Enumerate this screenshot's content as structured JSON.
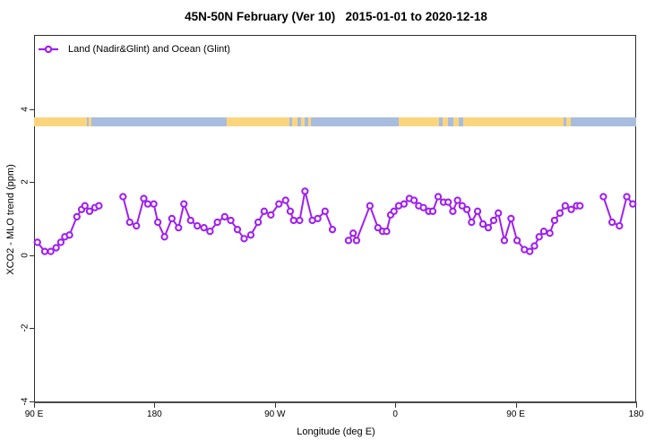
{
  "title": "45N-50N February (Ver 10)   2015-01-01 to 2020-12-18",
  "legend": {
    "label": "Land (Nadir&Glint) and Ocean (Glint)"
  },
  "colors": {
    "series": "#A020F0",
    "land": "#FBD57E",
    "ocean": "#A8BCDE",
    "axis": "#2f2f2f",
    "axis_bottom": "#4a4a4a"
  },
  "axes": {
    "x": {
      "label": "Longitude (deg E)",
      "range": [
        90,
        540
      ],
      "ticks": [
        {
          "pos": 90,
          "label": "90 E"
        },
        {
          "pos": 180,
          "label": "180"
        },
        {
          "pos": 270,
          "label": "90 W"
        },
        {
          "pos": 360,
          "label": "0"
        },
        {
          "pos": 450,
          "label": "90 E"
        },
        {
          "pos": 540,
          "label": "180"
        }
      ]
    },
    "y": {
      "label": "XCO2 - MLO trend (ppm)",
      "ticks": [
        {
          "pos": -4,
          "label": "-4"
        },
        {
          "pos": -2,
          "label": "-2"
        },
        {
          "pos": 0,
          "label": "0"
        },
        {
          "pos": 2,
          "label": "2"
        },
        {
          "pos": 4,
          "label": "4"
        }
      ]
    }
  },
  "surface_band": {
    "y_top_value": 3.77,
    "y_bottom_value": 3.52,
    "segments": [
      {
        "surface": "land",
        "from": 90,
        "to": 129.5
      },
      {
        "surface": "ocean",
        "from": 129.5,
        "to": 131
      },
      {
        "surface": "land",
        "from": 131,
        "to": 133
      },
      {
        "surface": "ocean",
        "from": 133,
        "to": 234
      },
      {
        "surface": "land",
        "from": 234,
        "to": 281
      },
      {
        "surface": "ocean",
        "from": 281,
        "to": 283
      },
      {
        "surface": "land",
        "from": 283,
        "to": 287
      },
      {
        "surface": "ocean",
        "from": 287,
        "to": 289.5
      },
      {
        "surface": "land",
        "from": 289.5,
        "to": 292
      },
      {
        "surface": "ocean",
        "from": 292,
        "to": 295
      },
      {
        "surface": "land",
        "from": 295,
        "to": 297
      },
      {
        "surface": "ocean",
        "from": 297,
        "to": 362.5
      },
      {
        "surface": "land",
        "from": 362.5,
        "to": 392.5
      },
      {
        "surface": "ocean",
        "from": 392.5,
        "to": 395.5
      },
      {
        "surface": "land",
        "from": 395.5,
        "to": 399.5
      },
      {
        "surface": "ocean",
        "from": 399.5,
        "to": 403.5
      },
      {
        "surface": "land",
        "from": 403.5,
        "to": 407.5
      },
      {
        "surface": "ocean",
        "from": 407.5,
        "to": 411
      },
      {
        "surface": "land",
        "from": 411,
        "to": 485.5
      },
      {
        "surface": "ocean",
        "from": 485.5,
        "to": 488
      },
      {
        "surface": "land",
        "from": 488,
        "to": 491
      },
      {
        "surface": "ocean",
        "from": 491,
        "to": 540
      }
    ]
  },
  "chart_data": {
    "type": "line",
    "title": "45N-50N February (Ver 10)   2015-01-01 to 2020-12-18",
    "xlabel": "Longitude (deg E)",
    "ylabel": "XCO2 - MLO trend (ppm)",
    "xlim": [
      90,
      540
    ],
    "ylim": [
      -4,
      6
    ],
    "legend_position": "top-left",
    "grid": false,
    "series": [
      {
        "name": "Land (Nadir&Glint) and Ocean (Glint)",
        "color": "#A020F0",
        "marker": "open-circle",
        "segments": [
          [
            [
              92.5,
              0.35
            ],
            [
              98,
              0.1
            ],
            [
              102.5,
              0.1
            ],
            [
              106.5,
              0.2
            ],
            [
              110,
              0.35
            ],
            [
              113,
              0.5
            ],
            [
              116.5,
              0.55
            ],
            [
              122,
              1.05
            ],
            [
              125.5,
              1.25
            ],
            [
              128,
              1.35
            ],
            [
              131.5,
              1.2
            ],
            [
              135.5,
              1.3
            ],
            [
              138.5,
              1.35
            ]
          ],
          [
            [
              156.5,
              1.6
            ],
            [
              161.5,
              0.9
            ],
            [
              166.5,
              0.8
            ],
            [
              172,
              1.55
            ],
            [
              175,
              1.4
            ],
            [
              179.5,
              1.4
            ],
            [
              182.5,
              0.9
            ],
            [
              187.5,
              0.5
            ],
            [
              193,
              1.0
            ],
            [
              198,
              0.75
            ],
            [
              202,
              1.4
            ],
            [
              207,
              0.95
            ],
            [
              212,
              0.8
            ],
            [
              217,
              0.75
            ],
            [
              221.5,
              0.65
            ],
            [
              227,
              0.9
            ],
            [
              232.5,
              1.05
            ],
            [
              237,
              0.95
            ],
            [
              242,
              0.7
            ],
            [
              247,
              0.45
            ],
            [
              252,
              0.55
            ],
            [
              257.5,
              0.9
            ],
            [
              262,
              1.2
            ],
            [
              267,
              1.1
            ],
            [
              273,
              1.4
            ],
            [
              278,
              1.5
            ],
            [
              281.5,
              1.2
            ],
            [
              284,
              0.95
            ],
            [
              288.5,
              0.95
            ],
            [
              292.5,
              1.75
            ],
            [
              298,
              0.95
            ],
            [
              302,
              1.0
            ],
            [
              307.5,
              1.2
            ],
            [
              313,
              0.7
            ]
          ],
          [
            [
              325,
              0.4
            ],
            [
              328.5,
              0.6
            ],
            [
              331,
              0.4
            ],
            [
              341,
              1.35
            ],
            [
              347,
              0.75
            ],
            [
              350.5,
              0.65
            ],
            [
              353.5,
              0.65
            ],
            [
              356.5,
              1.1
            ],
            [
              359,
              1.2
            ],
            [
              362.5,
              1.35
            ],
            [
              366.5,
              1.4
            ],
            [
              370.5,
              1.55
            ],
            [
              374,
              1.5
            ],
            [
              377.5,
              1.35
            ],
            [
              381,
              1.3
            ],
            [
              385,
              1.2
            ],
            [
              388,
              1.2
            ],
            [
              392,
              1.6
            ],
            [
              396,
              1.45
            ],
            [
              399.5,
              1.45
            ],
            [
              403,
              1.2
            ],
            [
              406.5,
              1.5
            ],
            [
              410,
              1.35
            ],
            [
              413.5,
              1.25
            ],
            [
              417,
              0.9
            ],
            [
              421.5,
              1.2
            ],
            [
              425.5,
              0.85
            ],
            [
              429.5,
              0.75
            ],
            [
              433.5,
              0.95
            ],
            [
              437,
              1.15
            ],
            [
              441.5,
              0.4
            ],
            [
              446.5,
              1.0
            ],
            [
              451,
              0.4
            ],
            [
              456.5,
              0.15
            ],
            [
              460.5,
              0.1
            ],
            [
              464,
              0.25
            ],
            [
              467.5,
              0.5
            ],
            [
              471,
              0.65
            ],
            [
              475.5,
              0.6
            ],
            [
              479,
              0.95
            ],
            [
              483,
              1.15
            ],
            [
              487,
              1.35
            ],
            [
              491.5,
              1.25
            ],
            [
              495.5,
              1.35
            ],
            [
              498,
              1.35
            ]
          ],
          [
            [
              515.5,
              1.6
            ],
            [
              522,
              0.9
            ],
            [
              527.5,
              0.8
            ],
            [
              533,
              1.6
            ],
            [
              537.5,
              1.4
            ]
          ]
        ]
      }
    ]
  }
}
